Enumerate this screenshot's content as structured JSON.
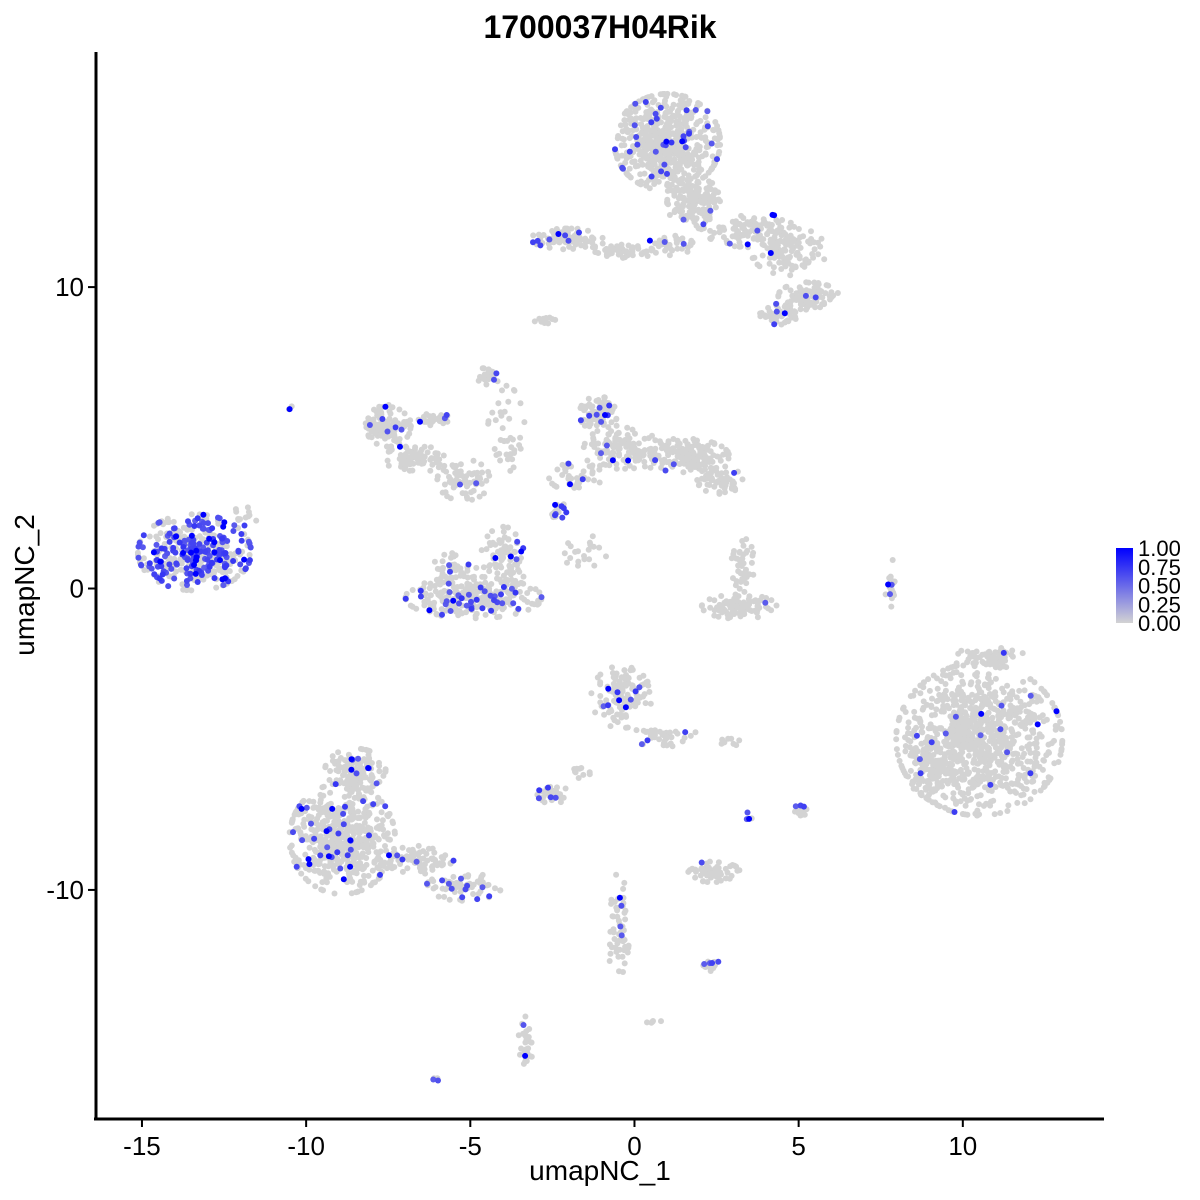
{
  "chart_data": {
    "type": "scatter",
    "title": "1700037H04Rik",
    "xlabel": "umapNC_1",
    "ylabel": "umapNC_2",
    "xlim": [
      -16.4,
      14.3
    ],
    "ylim": [
      -17.6,
      17.8
    ],
    "x_ticks": [
      -15,
      -10,
      -5,
      0,
      5,
      10
    ],
    "x_tick_labels": [
      "-15",
      "-10",
      "-5",
      "0",
      "5",
      "10"
    ],
    "y_ticks": [
      -10,
      0,
      10
    ],
    "y_tick_labels": [
      "-10",
      "0",
      "10"
    ],
    "grid": false,
    "legend_position": "right",
    "color_scale": {
      "low": "#d3d3d3",
      "high": "#0000ff",
      "min": 0,
      "max": 1,
      "breaks": [
        1.0,
        0.75,
        0.5,
        0.25,
        0.0
      ],
      "break_labels": [
        "1.00",
        "0.75",
        "0.50",
        "0.25",
        "0.00"
      ]
    },
    "clusters": [
      {
        "cx": -13.4,
        "cy": 1.2,
        "rx": 1.5,
        "ry": 1.1,
        "n": 400,
        "frac_expr": 0.45
      },
      {
        "cx": -11.8,
        "cy": 2.4,
        "rx": 0.4,
        "ry": 0.3,
        "n": 12,
        "frac_expr": 0.1
      },
      {
        "cx": -10.5,
        "cy": 6.0,
        "rx": 0.1,
        "ry": 0.1,
        "n": 3,
        "frac_expr": 0.3
      },
      {
        "cx": 1.0,
        "cy": 14.8,
        "rx": 1.4,
        "ry": 1.4,
        "n": 600,
        "frac_expr": 0.05
      },
      {
        "cx": 1.8,
        "cy": 12.8,
        "rx": 0.7,
        "ry": 0.8,
        "n": 150,
        "frac_expr": 0.02
      },
      {
        "cx": 3.5,
        "cy": 11.9,
        "rx": 1.2,
        "ry": 0.5,
        "n": 100,
        "frac_expr": 0.05
      },
      {
        "cx": 4.7,
        "cy": 11.2,
        "rx": 1.0,
        "ry": 0.7,
        "n": 110,
        "frac_expr": 0.03
      },
      {
        "cx": 5.3,
        "cy": 9.7,
        "rx": 0.8,
        "ry": 0.4,
        "n": 90,
        "frac_expr": 0.06
      },
      {
        "cx": 4.4,
        "cy": 9.1,
        "rx": 0.5,
        "ry": 0.3,
        "n": 50,
        "frac_expr": 0.05
      },
      {
        "cx": -2.0,
        "cy": 11.6,
        "rx": 1.0,
        "ry": 0.3,
        "n": 80,
        "frac_expr": 0.08
      },
      {
        "cx": -0.3,
        "cy": 11.2,
        "rx": 1.0,
        "ry": 0.2,
        "n": 50,
        "frac_expr": 0.02
      },
      {
        "cx": 1.1,
        "cy": 11.4,
        "rx": 0.6,
        "ry": 0.3,
        "n": 40,
        "frac_expr": 0.03
      },
      {
        "cx": -2.7,
        "cy": 8.9,
        "rx": 0.3,
        "ry": 0.2,
        "n": 15,
        "frac_expr": 0
      },
      {
        "cx": -7.5,
        "cy": 5.4,
        "rx": 0.6,
        "ry": 0.6,
        "n": 100,
        "frac_expr": 0.05
      },
      {
        "cx": -6.7,
        "cy": 4.3,
        "rx": 0.8,
        "ry": 0.4,
        "n": 80,
        "frac_expr": 0.03
      },
      {
        "cx": -6.0,
        "cy": 5.6,
        "rx": 0.5,
        "ry": 0.2,
        "n": 30,
        "frac_expr": 0.1
      },
      {
        "cx": -5.2,
        "cy": 3.6,
        "rx": 0.7,
        "ry": 0.6,
        "n": 70,
        "frac_expr": 0.05
      },
      {
        "cx": -3.9,
        "cy": 5.0,
        "rx": 0.5,
        "ry": 1.5,
        "n": 40,
        "frac_expr": 0.03
      },
      {
        "cx": -4.5,
        "cy": 7.0,
        "rx": 0.3,
        "ry": 0.4,
        "n": 20,
        "frac_expr": 0.1
      },
      {
        "cx": -4.9,
        "cy": -0.3,
        "rx": 1.8,
        "ry": 0.6,
        "n": 260,
        "frac_expr": 0.1
      },
      {
        "cx": -4.0,
        "cy": 0.9,
        "rx": 0.6,
        "ry": 1.0,
        "n": 90,
        "frac_expr": 0.04
      },
      {
        "cx": -5.5,
        "cy": 0.6,
        "rx": 0.6,
        "ry": 0.5,
        "n": 40,
        "frac_expr": 0.08
      },
      {
        "cx": -1.1,
        "cy": 5.8,
        "rx": 0.5,
        "ry": 0.5,
        "n": 70,
        "frac_expr": 0.1
      },
      {
        "cx": 1.5,
        "cy": 4.4,
        "rx": 1.2,
        "ry": 0.5,
        "n": 170,
        "frac_expr": 0.02
      },
      {
        "cx": -0.4,
        "cy": 4.6,
        "rx": 1.0,
        "ry": 0.7,
        "n": 120,
        "frac_expr": 0.05
      },
      {
        "cx": 2.6,
        "cy": 3.6,
        "rx": 0.6,
        "ry": 0.4,
        "n": 60,
        "frac_expr": 0.02
      },
      {
        "cx": -1.8,
        "cy": 3.7,
        "rx": 0.7,
        "ry": 0.4,
        "n": 40,
        "frac_expr": 0.05
      },
      {
        "cx": -2.3,
        "cy": 2.6,
        "rx": 0.2,
        "ry": 0.3,
        "n": 20,
        "frac_expr": 0.4
      },
      {
        "cx": -1.5,
        "cy": 1.2,
        "rx": 0.6,
        "ry": 0.5,
        "n": 20,
        "frac_expr": 0
      },
      {
        "cx": 3.2,
        "cy": -0.6,
        "rx": 1.0,
        "ry": 0.35,
        "n": 90,
        "frac_expr": 0.03
      },
      {
        "cx": 3.3,
        "cy": 0.8,
        "rx": 0.3,
        "ry": 0.8,
        "n": 40,
        "frac_expr": 0.03
      },
      {
        "cx": 7.8,
        "cy": 0.2,
        "rx": 0.15,
        "ry": 0.7,
        "n": 20,
        "frac_expr": 0.05
      },
      {
        "cx": 10.5,
        "cy": -5.0,
        "rx": 2.2,
        "ry": 2.2,
        "n": 900,
        "frac_expr": 0.02
      },
      {
        "cx": 9.0,
        "cy": -6.0,
        "rx": 0.6,
        "ry": 0.8,
        "n": 100,
        "frac_expr": 0.02
      },
      {
        "cx": 10.8,
        "cy": -2.3,
        "rx": 1.0,
        "ry": 0.3,
        "n": 60,
        "frac_expr": 0.02
      },
      {
        "cx": -0.4,
        "cy": -3.6,
        "rx": 0.8,
        "ry": 0.9,
        "n": 130,
        "frac_expr": 0.06
      },
      {
        "cx": 0.9,
        "cy": -4.9,
        "rx": 0.9,
        "ry": 0.3,
        "n": 40,
        "frac_expr": 0.05
      },
      {
        "cx": -8.9,
        "cy": -8.3,
        "rx": 1.4,
        "ry": 1.6,
        "n": 560,
        "frac_expr": 0.06
      },
      {
        "cx": -8.5,
        "cy": -6.0,
        "rx": 0.8,
        "ry": 0.6,
        "n": 120,
        "frac_expr": 0.05
      },
      {
        "cx": -6.5,
        "cy": -9.0,
        "rx": 1.0,
        "ry": 0.4,
        "n": 80,
        "frac_expr": 0.07
      },
      {
        "cx": -5.2,
        "cy": -9.9,
        "rx": 1.0,
        "ry": 0.4,
        "n": 70,
        "frac_expr": 0.1
      },
      {
        "cx": -2.5,
        "cy": -6.8,
        "rx": 0.4,
        "ry": 0.3,
        "n": 40,
        "frac_expr": 0.05
      },
      {
        "cx": -1.7,
        "cy": -6.1,
        "rx": 0.3,
        "ry": 0.3,
        "n": 10,
        "frac_expr": 0
      },
      {
        "cx": 2.4,
        "cy": -9.4,
        "rx": 0.7,
        "ry": 0.3,
        "n": 60,
        "frac_expr": 0.05
      },
      {
        "cx": -0.5,
        "cy": -11.2,
        "rx": 0.3,
        "ry": 1.5,
        "n": 60,
        "frac_expr": 0.05
      },
      {
        "cx": 2.3,
        "cy": -12.5,
        "rx": 0.3,
        "ry": 0.2,
        "n": 20,
        "frac_expr": 0.2
      },
      {
        "cx": -3.3,
        "cy": -15.0,
        "rx": 0.2,
        "ry": 0.7,
        "n": 30,
        "frac_expr": 0.1
      },
      {
        "cx": 5.1,
        "cy": -7.3,
        "rx": 0.2,
        "ry": 0.3,
        "n": 15,
        "frac_expr": 0.1
      },
      {
        "cx": 2.9,
        "cy": -5.1,
        "rx": 0.3,
        "ry": 0.1,
        "n": 8,
        "frac_expr": 0
      },
      {
        "cx": 3.4,
        "cy": -7.6,
        "rx": 0.15,
        "ry": 0.15,
        "n": 4,
        "frac_expr": 0.5
      },
      {
        "cx": -6.0,
        "cy": -16.3,
        "rx": 0.15,
        "ry": 0.1,
        "n": 4,
        "frac_expr": 0.3
      },
      {
        "cx": 0.6,
        "cy": -14.4,
        "rx": 0.2,
        "ry": 0.1,
        "n": 5,
        "frac_expr": 0
      }
    ]
  }
}
